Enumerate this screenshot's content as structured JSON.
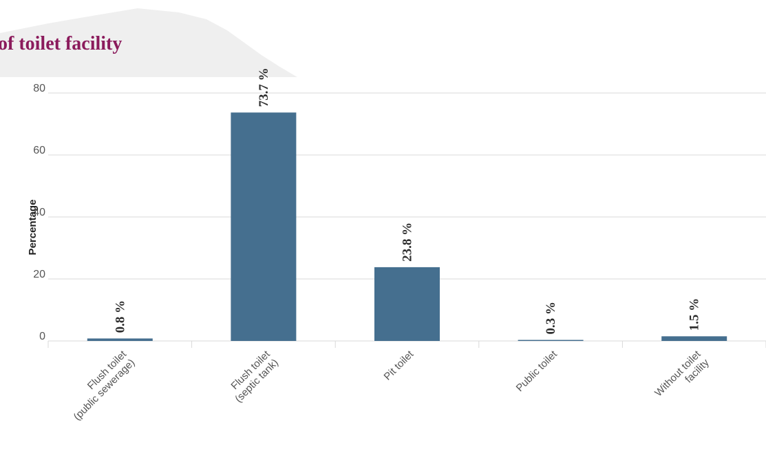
{
  "colors": {
    "bar": "#456f8f",
    "title": "#8b1b5c",
    "grid": "#d9d9d9",
    "map_shape": "#efefef"
  },
  "chart_data": {
    "type": "bar",
    "title": "pe of toilet facility",
    "xlabel": "",
    "ylabel": "Percentage",
    "ylim": [
      0,
      90
    ],
    "yticks": [
      0,
      20,
      40,
      60,
      80
    ],
    "grid": true,
    "legend": "none",
    "categories": [
      [
        "Flush toilet",
        "(public sewerage)"
      ],
      [
        "Flush toilet",
        "(septic tank)"
      ],
      [
        "Pit toilet"
      ],
      [
        "Public toilet"
      ],
      [
        "Without toilet",
        "facility"
      ]
    ],
    "values": [
      0.8,
      73.7,
      23.8,
      0.3,
      1.5
    ],
    "data_labels": [
      "0.8 %",
      "73.7 %",
      "23.8 %",
      "0.3 %",
      "1.5 %"
    ]
  }
}
